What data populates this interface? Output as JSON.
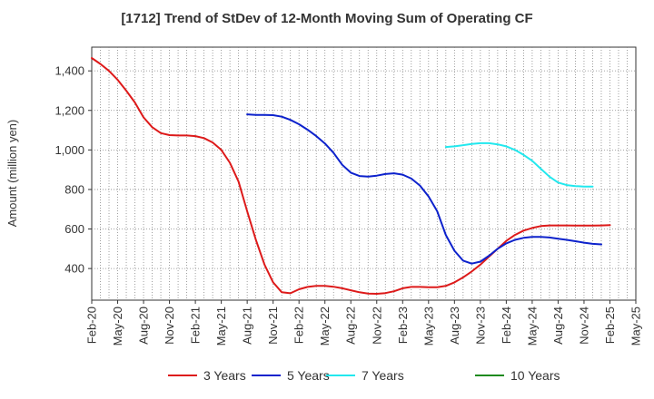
{
  "chart_data": {
    "type": "line",
    "title": "[1712]  Trend of StDev of 12-Month Moving Sum of Operating CF",
    "xlabel": "",
    "ylabel": "Amount (million yen)",
    "ylim": [
      240,
      1520
    ],
    "yticks": [
      400,
      600,
      800,
      1000,
      1200,
      1400
    ],
    "ytick_labels": [
      "400",
      "600",
      "800",
      "1,000",
      "1,200",
      "1,400"
    ],
    "x_tick_labels": [
      "Feb-20",
      "May-20",
      "Aug-20",
      "Nov-20",
      "Feb-21",
      "May-21",
      "Aug-21",
      "Nov-21",
      "Feb-22",
      "May-22",
      "Aug-22",
      "Nov-22",
      "Feb-23",
      "May-23",
      "Aug-23",
      "Nov-23",
      "Feb-24",
      "May-24",
      "Aug-24",
      "Nov-24",
      "Feb-25",
      "May-25"
    ],
    "x_start": "Feb-20",
    "x_end": "May-25",
    "grid": true,
    "legend_position": "bottom",
    "series": [
      {
        "name": "3 Years",
        "color": "#dd1a1a",
        "points": [
          [
            "Feb-20",
            1465
          ],
          [
            "Mar-20",
            1435
          ],
          [
            "Apr-20",
            1400
          ],
          [
            "May-20",
            1355
          ],
          [
            "Jun-20",
            1300
          ],
          [
            "Jul-20",
            1240
          ],
          [
            "Aug-20",
            1165
          ],
          [
            "Sep-20",
            1115
          ],
          [
            "Oct-20",
            1085
          ],
          [
            "Nov-20",
            1075
          ],
          [
            "Dec-20",
            1073
          ],
          [
            "Jan-21",
            1073
          ],
          [
            "Feb-21",
            1070
          ],
          [
            "Mar-21",
            1060
          ],
          [
            "Apr-21",
            1038
          ],
          [
            "May-21",
            1000
          ],
          [
            "Jun-21",
            935
          ],
          [
            "Jul-21",
            840
          ],
          [
            "Aug-21",
            690
          ],
          [
            "Sep-21",
            545
          ],
          [
            "Oct-21",
            420
          ],
          [
            "Nov-21",
            330
          ],
          [
            "Dec-21",
            280
          ],
          [
            "Jan-22",
            275
          ],
          [
            "Feb-22",
            295
          ],
          [
            "Mar-22",
            307
          ],
          [
            "Apr-22",
            312
          ],
          [
            "May-22",
            312
          ],
          [
            "Jun-22",
            308
          ],
          [
            "Jul-22",
            300
          ],
          [
            "Aug-22",
            290
          ],
          [
            "Sep-22",
            280
          ],
          [
            "Oct-22",
            273
          ],
          [
            "Nov-22",
            272
          ],
          [
            "Dec-22",
            276
          ],
          [
            "Jan-23",
            285
          ],
          [
            "Feb-23",
            300
          ],
          [
            "Mar-23",
            307
          ],
          [
            "Apr-23",
            307
          ],
          [
            "May-23",
            305
          ],
          [
            "Jun-23",
            305
          ],
          [
            "Jul-23",
            312
          ],
          [
            "Aug-23",
            330
          ],
          [
            "Sep-23",
            355
          ],
          [
            "Oct-23",
            385
          ],
          [
            "Nov-23",
            420
          ],
          [
            "Dec-23",
            460
          ],
          [
            "Jan-24",
            500
          ],
          [
            "Feb-24",
            540
          ],
          [
            "Mar-24",
            570
          ],
          [
            "Apr-24",
            592
          ],
          [
            "May-24",
            605
          ],
          [
            "Jun-24",
            615
          ],
          [
            "Jul-24",
            618
          ],
          [
            "Aug-24",
            618
          ],
          [
            "Sep-24",
            618
          ],
          [
            "Oct-24",
            617
          ],
          [
            "Nov-24",
            617
          ],
          [
            "Dec-24",
            617
          ],
          [
            "Jan-25",
            618
          ],
          [
            "Feb-25",
            620
          ]
        ]
      },
      {
        "name": "5 Years",
        "color": "#0d22cc",
        "points": [
          [
            "Aug-21",
            1180
          ],
          [
            "Sep-21",
            1177
          ],
          [
            "Oct-21",
            1177
          ],
          [
            "Nov-21",
            1176
          ],
          [
            "Dec-21",
            1168
          ],
          [
            "Jan-22",
            1152
          ],
          [
            "Feb-22",
            1130
          ],
          [
            "Mar-22",
            1102
          ],
          [
            "Apr-22",
            1070
          ],
          [
            "May-22",
            1033
          ],
          [
            "Jun-22",
            985
          ],
          [
            "Jul-22",
            925
          ],
          [
            "Aug-22",
            885
          ],
          [
            "Sep-22",
            868
          ],
          [
            "Oct-22",
            865
          ],
          [
            "Nov-22",
            870
          ],
          [
            "Dec-22",
            878
          ],
          [
            "Jan-23",
            882
          ],
          [
            "Feb-23",
            875
          ],
          [
            "Mar-23",
            855
          ],
          [
            "Apr-23",
            820
          ],
          [
            "May-23",
            765
          ],
          [
            "Jun-23",
            690
          ],
          [
            "Jul-23",
            570
          ],
          [
            "Aug-23",
            490
          ],
          [
            "Sep-23",
            440
          ],
          [
            "Oct-23",
            425
          ],
          [
            "Nov-23",
            435
          ],
          [
            "Dec-23",
            465
          ],
          [
            "Jan-24",
            500
          ],
          [
            "Feb-24",
            527
          ],
          [
            "Mar-24",
            545
          ],
          [
            "Apr-24",
            555
          ],
          [
            "May-24",
            560
          ],
          [
            "Jun-24",
            560
          ],
          [
            "Jul-24",
            557
          ],
          [
            "Aug-24",
            551
          ],
          [
            "Sep-24",
            545
          ],
          [
            "Oct-24",
            538
          ],
          [
            "Nov-24",
            531
          ],
          [
            "Dec-24",
            525
          ],
          [
            "Jan-25",
            522
          ]
        ]
      },
      {
        "name": "7 Years",
        "color": "#22e8ee",
        "points": [
          [
            "Jul-23",
            1015
          ],
          [
            "Aug-23",
            1018
          ],
          [
            "Sep-23",
            1024
          ],
          [
            "Oct-23",
            1030
          ],
          [
            "Nov-23",
            1034
          ],
          [
            "Dec-23",
            1034
          ],
          [
            "Jan-24",
            1028
          ],
          [
            "Feb-24",
            1018
          ],
          [
            "Mar-24",
            1000
          ],
          [
            "Apr-24",
            975
          ],
          [
            "May-24",
            945
          ],
          [
            "Jun-24",
            905
          ],
          [
            "Jul-24",
            865
          ],
          [
            "Aug-24",
            835
          ],
          [
            "Sep-24",
            822
          ],
          [
            "Oct-24",
            817
          ],
          [
            "Nov-24",
            815
          ],
          [
            "Dec-24",
            815
          ]
        ]
      },
      {
        "name": "10 Years",
        "color": "#1e8a1e",
        "points": []
      }
    ]
  }
}
